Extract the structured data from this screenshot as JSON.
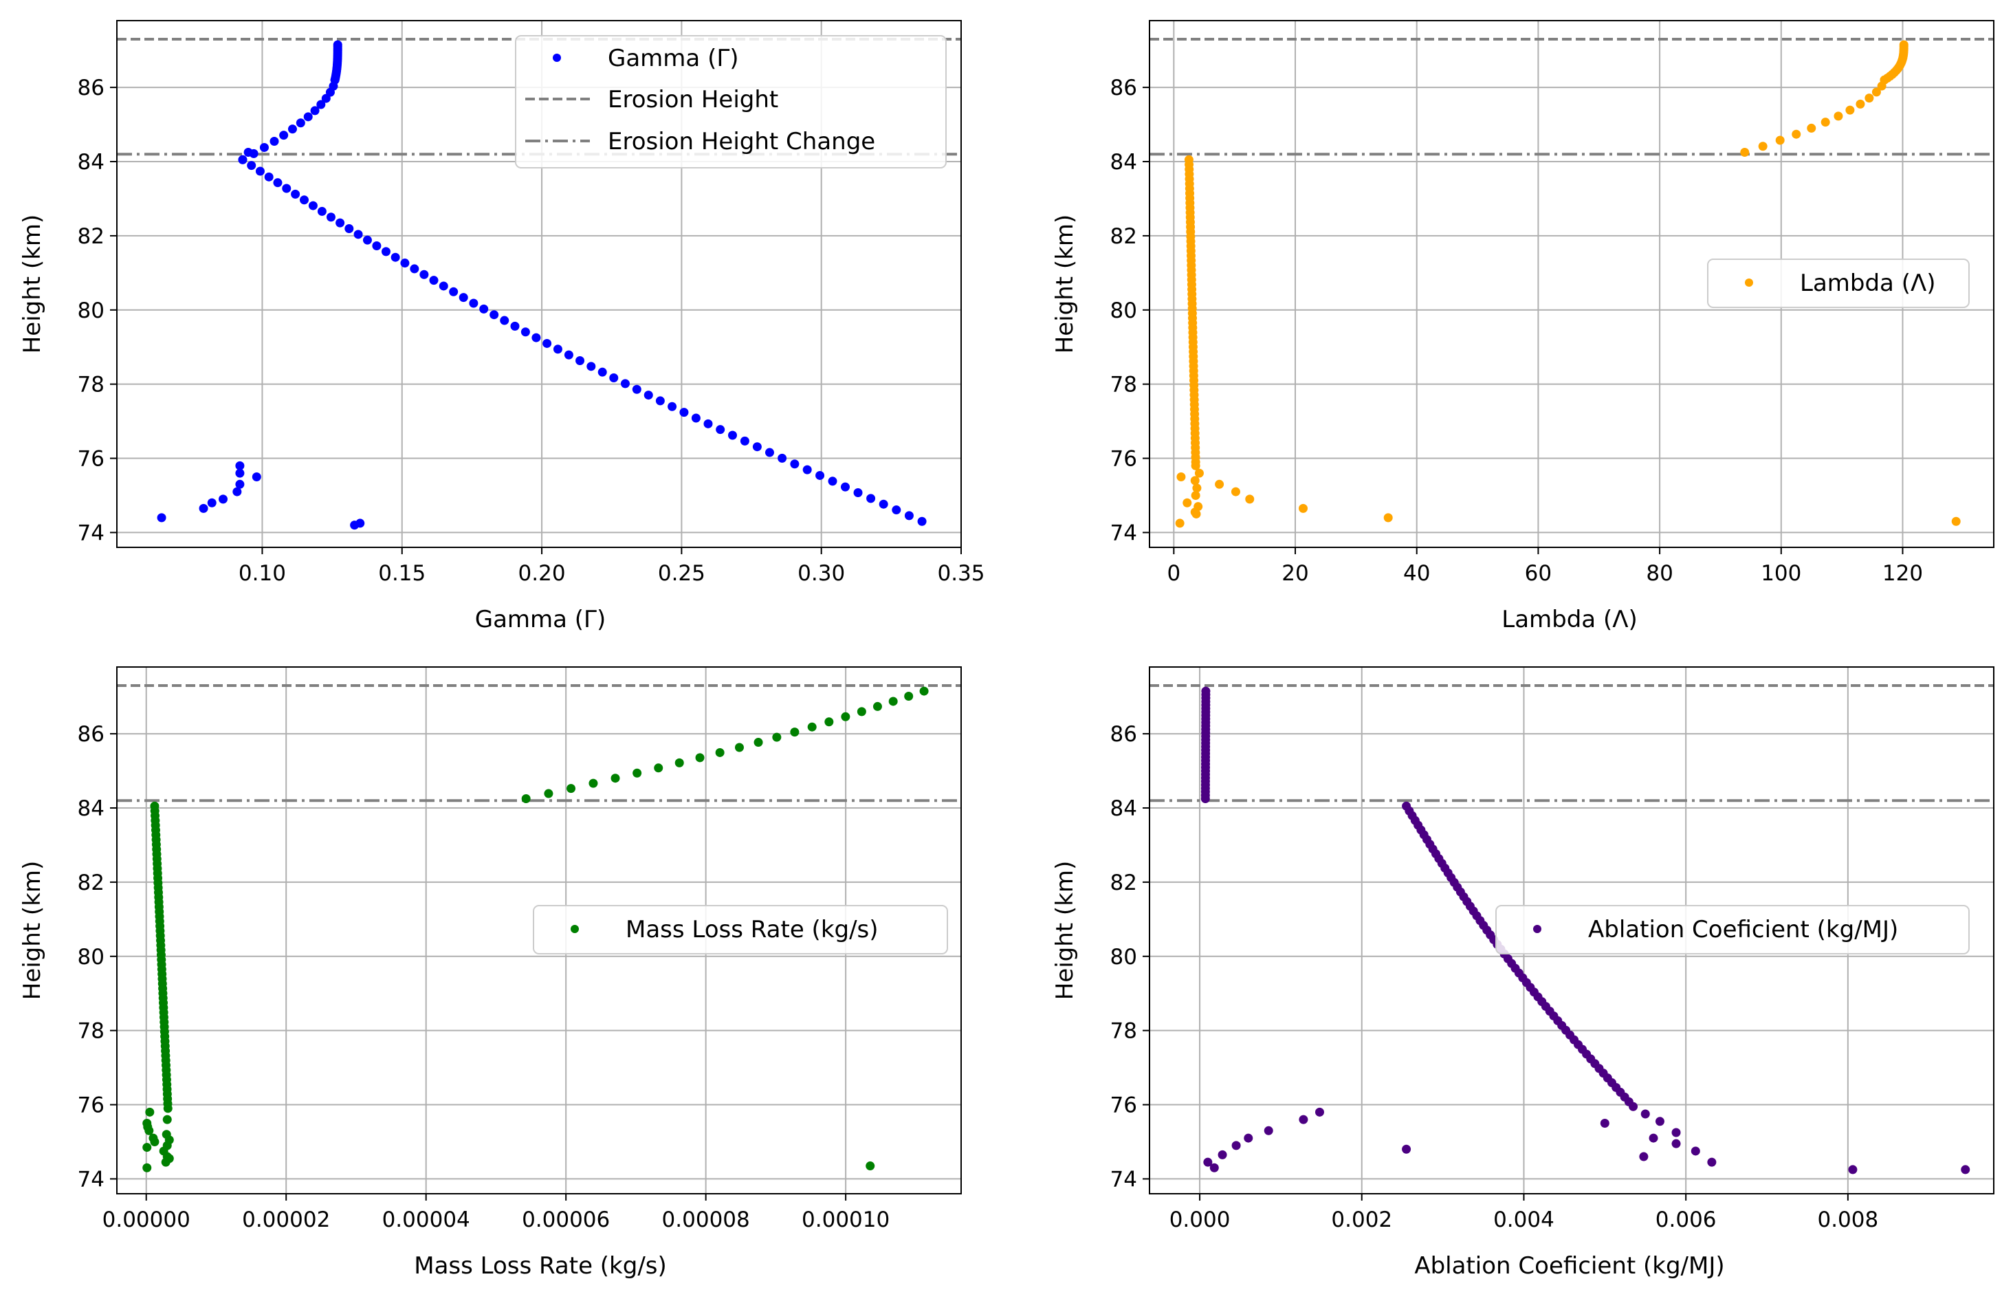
{
  "chart_data": [
    {
      "type": "scatter",
      "xlabel": "Gamma (Γ)",
      "ylabel": "Height (km)",
      "xlim": [
        0.048,
        0.35
      ],
      "ylim": [
        73.6,
        87.8
      ],
      "xticks": [
        "0.10",
        "0.15",
        "0.20",
        "0.25",
        "0.30",
        "0.35"
      ],
      "yticks": [
        "74",
        "76",
        "78",
        "80",
        "82",
        "84",
        "86"
      ],
      "grid": true,
      "legend_position": "top-right",
      "color": "#0000ff",
      "series_name": "Gamma (Γ)",
      "segments": [
        {
          "x_start": 0.127,
          "x_end": 0.126,
          "y_start": 87.15,
          "y_end": 86.2,
          "n": 20,
          "shape": "power",
          "power": 3
        },
        {
          "x_start": 0.126,
          "x_end": 0.093,
          "y_start": 86.2,
          "y_end": 84.05,
          "n": 14,
          "shape": "power",
          "power": 1.6
        },
        {
          "x_start": 0.093,
          "x_end": 0.336,
          "y_start": 84.05,
          "y_end": 74.3,
          "n": 64,
          "shape": "curve"
        }
      ],
      "points": [
        [
          0.092,
          75.8
        ],
        [
          0.092,
          75.6
        ],
        [
          0.098,
          75.5
        ],
        [
          0.092,
          75.3
        ],
        [
          0.091,
          75.1
        ],
        [
          0.086,
          74.9
        ],
        [
          0.082,
          74.8
        ],
        [
          0.079,
          74.65
        ],
        [
          0.064,
          74.4
        ],
        [
          0.133,
          74.2
        ],
        [
          0.135,
          74.25
        ],
        [
          0.095,
          84.25
        ]
      ],
      "reference_lines": [
        {
          "name": "Erosion Height",
          "y": 87.3,
          "style": "dashed"
        },
        {
          "name": "Erosion Height Change",
          "y": 84.2,
          "style": "dashdot"
        }
      ]
    },
    {
      "type": "scatter",
      "xlabel": "Lambda (Λ)",
      "ylabel": "Height (km)",
      "xlim": [
        -4,
        135
      ],
      "ylim": [
        73.6,
        87.8
      ],
      "xticks": [
        "0",
        "20",
        "40",
        "60",
        "80",
        "100",
        "120"
      ],
      "yticks": [
        "74",
        "76",
        "78",
        "80",
        "82",
        "84",
        "86"
      ],
      "grid": true,
      "legend_position": "center-right",
      "color": "#ffa500",
      "series_name": "Lambda (Λ)",
      "segments": [
        {
          "x_start": 120.2,
          "x_end": 117,
          "y_start": 87.15,
          "y_end": 86.2,
          "n": 20,
          "shape": "power",
          "power": 3
        },
        {
          "x_start": 117,
          "x_end": 94,
          "y_start": 86.2,
          "y_end": 84.25,
          "n": 13,
          "shape": "power",
          "power": 1.6
        },
        {
          "x_start": 2.5,
          "x_end": 3.6,
          "y_start": 84.05,
          "y_end": 75.9,
          "n": 64,
          "shape": "linear"
        }
      ],
      "points": [
        [
          3.6,
          75.8
        ],
        [
          4.2,
          75.6
        ],
        [
          1.2,
          75.5
        ],
        [
          3.5,
          75.4
        ],
        [
          7.5,
          75.3
        ],
        [
          3.8,
          75.2
        ],
        [
          10.2,
          75.1
        ],
        [
          3.6,
          75.0
        ],
        [
          12.5,
          74.9
        ],
        [
          2.2,
          74.8
        ],
        [
          4.0,
          74.7
        ],
        [
          21.3,
          74.65
        ],
        [
          3.5,
          74.55
        ],
        [
          3.7,
          74.5
        ],
        [
          35.3,
          74.4
        ],
        [
          1.0,
          74.25
        ],
        [
          128.8,
          74.3
        ]
      ],
      "reference_lines": [
        {
          "name": "Erosion Height",
          "y": 87.3,
          "style": "dashed"
        },
        {
          "name": "Erosion Height Change",
          "y": 84.2,
          "style": "dashdot"
        }
      ]
    },
    {
      "type": "scatter",
      "xlabel": "Mass Loss Rate (kg/s)",
      "ylabel": "Height (km)",
      "xlim": [
        -4.2e-06,
        0.0001165
      ],
      "ylim": [
        73.6,
        87.8
      ],
      "xticks": [
        "0.00000",
        "0.00002",
        "0.00004",
        "0.00006",
        "0.00008",
        "0.00010"
      ],
      "yticks": [
        "74",
        "76",
        "78",
        "80",
        "82",
        "84",
        "86"
      ],
      "grid": true,
      "legend_position": "center-right",
      "color": "#008000",
      "series_name": "Mass Loss Rate (kg/s)",
      "segments": [
        {
          "x_start": 0.0001112,
          "x_end": 5.43e-05,
          "y_start": 87.15,
          "y_end": 84.25,
          "n": 22,
          "shape": "curve"
        },
        {
          "x_start": 1.2e-06,
          "x_end": 3.1e-06,
          "y_start": 84.05,
          "y_end": 75.9,
          "n": 64,
          "shape": "linear"
        }
      ],
      "points": [
        [
          5e-07,
          75.8
        ],
        [
          3e-06,
          75.6
        ],
        [
          1e-07,
          75.5
        ],
        [
          2e-07,
          75.4
        ],
        [
          4e-07,
          75.3
        ],
        [
          2.9e-06,
          75.2
        ],
        [
          1e-06,
          75.1
        ],
        [
          3.3e-06,
          75.05
        ],
        [
          1.2e-06,
          75.0
        ],
        [
          3e-06,
          74.9
        ],
        [
          1e-07,
          74.85
        ],
        [
          2.5e-06,
          74.75
        ],
        [
          3e-06,
          74.6
        ],
        [
          3.3e-06,
          74.55
        ],
        [
          2.8e-06,
          74.45
        ],
        [
          1e-07,
          74.3
        ],
        [
          0.0001035,
          74.35
        ]
      ],
      "reference_lines": [
        {
          "name": "Erosion Height",
          "y": 87.3,
          "style": "dashed"
        },
        {
          "name": "Erosion Height Change",
          "y": 84.2,
          "style": "dashdot"
        }
      ]
    },
    {
      "type": "scatter",
      "xlabel": "Ablation Coeficient (kg/MJ)",
      "ylabel": "Height (km)",
      "xlim": [
        -0.00062,
        0.0098
      ],
      "ylim": [
        73.6,
        87.8
      ],
      "xticks": [
        "0.000",
        "0.002",
        "0.004",
        "0.006",
        "0.008"
      ],
      "yticks": [
        "74",
        "76",
        "78",
        "80",
        "82",
        "84",
        "86"
      ],
      "grid": true,
      "legend_position": "center-right",
      "color": "#4b0082",
      "series_name": "Ablation Coeficient (kg/MJ)",
      "segments": [
        {
          "x_start": 7.5e-05,
          "x_end": 7e-05,
          "y_start": 87.15,
          "y_end": 84.25,
          "n": 32,
          "shape": "linear"
        },
        {
          "x_start": 0.00255,
          "x_end": 0.00535,
          "y_start": 84.05,
          "y_end": 75.95,
          "n": 64,
          "shape": "curve"
        }
      ],
      "points": [
        [
          0.00148,
          75.8
        ],
        [
          0.0055,
          75.75
        ],
        [
          0.00128,
          75.6
        ],
        [
          0.00568,
          75.55
        ],
        [
          0.005,
          75.5
        ],
        [
          0.00085,
          75.3
        ],
        [
          0.00588,
          75.25
        ],
        [
          0.0006,
          75.1
        ],
        [
          0.0056,
          75.1
        ],
        [
          0.00045,
          74.9
        ],
        [
          0.00588,
          74.95
        ],
        [
          0.00255,
          74.8
        ],
        [
          0.00612,
          74.75
        ],
        [
          0.00028,
          74.65
        ],
        [
          0.00548,
          74.6
        ],
        [
          0.0001,
          74.45
        ],
        [
          0.00632,
          74.45
        ],
        [
          0.00018,
          74.3
        ],
        [
          0.00806,
          74.25
        ],
        [
          0.00945,
          74.25
        ]
      ],
      "reference_lines": [
        {
          "name": "Erosion Height",
          "y": 87.3,
          "style": "dashed"
        },
        {
          "name": "Erosion Height Change",
          "y": 84.2,
          "style": "dashdot"
        }
      ]
    }
  ],
  "legend_top_left": {
    "marker_label": "Gamma (Γ)",
    "dashed_label": "Erosion Height",
    "dashdot_label": "Erosion Height Change"
  }
}
